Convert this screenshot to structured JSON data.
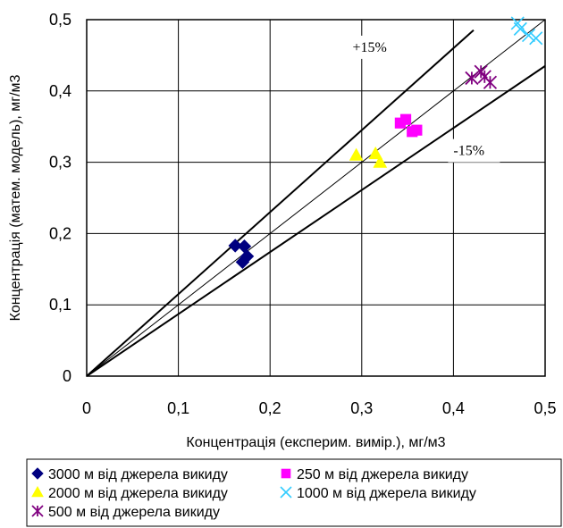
{
  "chart_data": {
    "type": "scatter",
    "xlabel": "Концентрація (експерим. вимір.), мг/м3",
    "ylabel": "Концентрація (матем. модель), мг/м3",
    "xlim": [
      0,
      0.5
    ],
    "ylim": [
      0,
      0.5
    ],
    "x_ticks": [
      "0",
      "0,1",
      "0,2",
      "0,3",
      "0,4",
      "0,5"
    ],
    "y_ticks": [
      "0",
      "0,1",
      "0,2",
      "0,3",
      "0,4",
      "0,5"
    ],
    "grid": true,
    "legend_position": "bottom",
    "annotations": [
      {
        "text": "+15%",
        "x": 0.29,
        "y": 0.455
      },
      {
        "text": "-15%",
        "x": 0.4,
        "y": 0.31
      }
    ],
    "reference_lines": [
      {
        "slope": 1.0,
        "x_end": 0.5
      },
      {
        "slope": 1.15,
        "x_end": 0.422
      },
      {
        "slope": 0.87,
        "x_end": 0.5
      }
    ],
    "series": [
      {
        "name": "3000 м від джерела викиду",
        "marker": "diamond",
        "color": "#000080",
        "points": [
          [
            0.162,
            0.183
          ],
          [
            0.172,
            0.182
          ],
          [
            0.17,
            0.16
          ],
          [
            0.175,
            0.168
          ]
        ]
      },
      {
        "name": "250 м від джерела викиду",
        "marker": "square",
        "color": "#ff00ff",
        "points": [
          [
            0.342,
            0.355
          ],
          [
            0.348,
            0.36
          ],
          [
            0.355,
            0.343
          ],
          [
            0.36,
            0.345
          ]
        ]
      },
      {
        "name": "2000 м від джерела викиду",
        "marker": "triangle",
        "color": "#ffff00",
        "points": [
          [
            0.294,
            0.31
          ],
          [
            0.315,
            0.312
          ],
          [
            0.32,
            0.3
          ]
        ]
      },
      {
        "name": "1000 м від джерела викиду",
        "marker": "x",
        "color": "#33ccff",
        "points": [
          [
            0.47,
            0.495
          ],
          [
            0.473,
            0.487
          ],
          [
            0.482,
            0.478
          ],
          [
            0.49,
            0.474
          ]
        ]
      },
      {
        "name": "500 м від джерела викиду",
        "marker": "asterisk",
        "color": "#800080",
        "points": [
          [
            0.42,
            0.418
          ],
          [
            0.43,
            0.427
          ],
          [
            0.434,
            0.42
          ],
          [
            0.44,
            0.412
          ]
        ]
      }
    ]
  }
}
